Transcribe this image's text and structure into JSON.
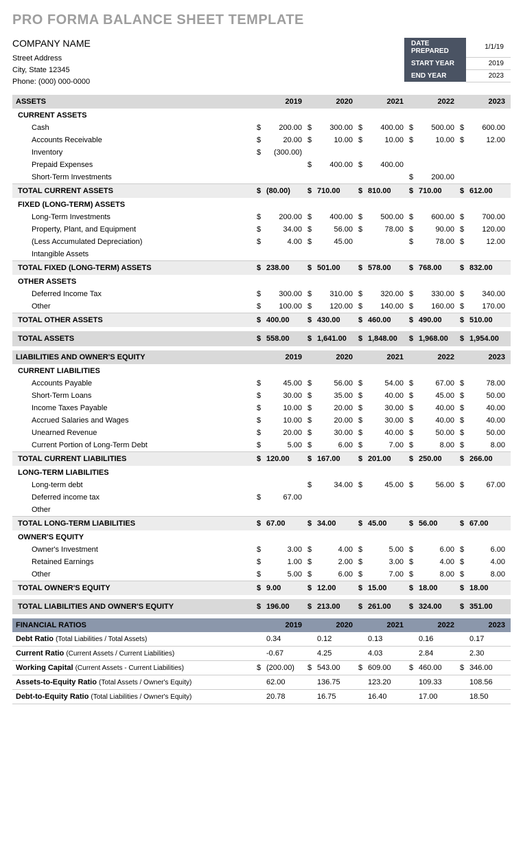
{
  "title": "PRO FORMA BALANCE SHEET TEMPLATE",
  "company": {
    "name": "COMPANY NAME",
    "street": "Street Address",
    "city": "City, State  12345",
    "phone": "Phone: (000) 000-0000"
  },
  "meta": {
    "date_prepared_label": "DATE PREPARED",
    "date_prepared": "1/1/19",
    "start_year_label": "START YEAR",
    "start_year": "2019",
    "end_year_label": "END YEAR",
    "end_year": "2023"
  },
  "years": [
    "2019",
    "2020",
    "2021",
    "2022",
    "2023"
  ],
  "assets_label": "ASSETS",
  "current_assets": {
    "label": "CURRENT ASSETS",
    "rows": [
      {
        "label": "Cash",
        "v": [
          "200.00",
          "300.00",
          "400.00",
          "500.00",
          "600.00"
        ]
      },
      {
        "label": "Accounts Receivable",
        "v": [
          "20.00",
          "10.00",
          "10.00",
          "10.00",
          "12.00"
        ]
      },
      {
        "label": "Inventory",
        "v": [
          "(300.00)",
          "",
          "",
          "",
          ""
        ]
      },
      {
        "label": "Prepaid Expenses",
        "v": [
          "",
          "400.00",
          "400.00",
          "",
          ""
        ]
      },
      {
        "label": "Short-Term Investments",
        "v": [
          "",
          "",
          "",
          "200.00",
          ""
        ]
      }
    ],
    "total_label": "TOTAL CURRENT ASSETS",
    "total": [
      "(80.00)",
      "710.00",
      "810.00",
      "710.00",
      "612.00"
    ]
  },
  "fixed_assets": {
    "label": "FIXED (LONG-TERM) ASSETS",
    "rows": [
      {
        "label": "Long-Term Investments",
        "v": [
          "200.00",
          "400.00",
          "500.00",
          "600.00",
          "700.00"
        ]
      },
      {
        "label": "Property, Plant, and Equipment",
        "v": [
          "34.00",
          "56.00",
          "78.00",
          "90.00",
          "120.00"
        ]
      },
      {
        "label": "(Less Accumulated Depreciation)",
        "v": [
          "4.00",
          "45.00",
          "",
          "78.00",
          "12.00"
        ]
      },
      {
        "label": "Intangible Assets",
        "v": [
          "",
          "",
          "",
          "",
          ""
        ]
      }
    ],
    "total_label": "TOTAL FIXED (LONG-TERM) ASSETS",
    "total": [
      "238.00",
      "501.00",
      "578.00",
      "768.00",
      "832.00"
    ]
  },
  "other_assets": {
    "label": "OTHER ASSETS",
    "rows": [
      {
        "label": "Deferred Income Tax",
        "v": [
          "300.00",
          "310.00",
          "320.00",
          "330.00",
          "340.00"
        ]
      },
      {
        "label": "Other",
        "v": [
          "100.00",
          "120.00",
          "140.00",
          "160.00",
          "170.00"
        ]
      }
    ],
    "total_label": "TOTAL OTHER ASSETS",
    "total": [
      "400.00",
      "430.00",
      "460.00",
      "490.00",
      "510.00"
    ]
  },
  "total_assets_label": "TOTAL ASSETS",
  "total_assets": [
    "558.00",
    "1,641.00",
    "1,848.00",
    "1,968.00",
    "1,954.00"
  ],
  "liab_label": "LIABILITIES AND OWNER'S EQUITY",
  "current_liab": {
    "label": "CURRENT LIABILITIES",
    "rows": [
      {
        "label": "Accounts Payable",
        "v": [
          "45.00",
          "56.00",
          "54.00",
          "67.00",
          "78.00"
        ]
      },
      {
        "label": "Short-Term Loans",
        "v": [
          "30.00",
          "35.00",
          "40.00",
          "45.00",
          "50.00"
        ]
      },
      {
        "label": "Income Taxes Payable",
        "v": [
          "10.00",
          "20.00",
          "30.00",
          "40.00",
          "40.00"
        ]
      },
      {
        "label": "Accrued Salaries and Wages",
        "v": [
          "10.00",
          "20.00",
          "30.00",
          "40.00",
          "40.00"
        ]
      },
      {
        "label": "Unearned Revenue",
        "v": [
          "20.00",
          "30.00",
          "40.00",
          "50.00",
          "50.00"
        ]
      },
      {
        "label": "Current Portion of Long-Term Debt",
        "v": [
          "5.00",
          "6.00",
          "7.00",
          "8.00",
          "8.00"
        ]
      }
    ],
    "total_label": "TOTAL CURRENT LIABILITIES",
    "total": [
      "120.00",
      "167.00",
      "201.00",
      "250.00",
      "266.00"
    ]
  },
  "lt_liab": {
    "label": "LONG-TERM LIABILITIES",
    "rows": [
      {
        "label": "Long-term debt",
        "v": [
          "",
          "34.00",
          "45.00",
          "56.00",
          "67.00"
        ]
      },
      {
        "label": "Deferred income tax",
        "v": [
          "67.00",
          "",
          "",
          "",
          ""
        ]
      },
      {
        "label": "Other",
        "v": [
          "",
          "",
          "",
          "",
          ""
        ]
      }
    ],
    "total_label": "TOTAL LONG-TERM LIABILITIES",
    "total": [
      "67.00",
      "34.00",
      "45.00",
      "56.00",
      "67.00"
    ]
  },
  "equity": {
    "label": "OWNER'S EQUITY",
    "rows": [
      {
        "label": "Owner's Investment",
        "v": [
          "3.00",
          "4.00",
          "5.00",
          "6.00",
          "6.00"
        ]
      },
      {
        "label": "Retained Earnings",
        "v": [
          "1.00",
          "2.00",
          "3.00",
          "4.00",
          "4.00"
        ]
      },
      {
        "label": "Other",
        "v": [
          "5.00",
          "6.00",
          "7.00",
          "8.00",
          "8.00"
        ]
      }
    ],
    "total_label": "TOTAL OWNER'S EQUITY",
    "total": [
      "9.00",
      "12.00",
      "15.00",
      "18.00",
      "18.00"
    ]
  },
  "total_liab_label": "TOTAL LIABILITIES AND OWNER'S EQUITY",
  "total_liab": [
    "196.00",
    "213.00",
    "261.00",
    "324.00",
    "351.00"
  ],
  "ratios_label": "FINANCIAL RATIOS",
  "ratios": [
    {
      "label": "Debt Ratio",
      "desc": "(Total Liabilities / Total Assets)",
      "sym": false,
      "v": [
        "0.34",
        "0.12",
        "0.13",
        "0.16",
        "0.17"
      ]
    },
    {
      "label": "Current Ratio",
      "desc": "(Current Assets / Current Liabilities)",
      "sym": false,
      "v": [
        "-0.67",
        "4.25",
        "4.03",
        "2.84",
        "2.30"
      ]
    },
    {
      "label": "Working Capital",
      "desc": "(Current Assets - Current Liabilities)",
      "sym": true,
      "v": [
        "(200.00)",
        "543.00",
        "609.00",
        "460.00",
        "346.00"
      ]
    },
    {
      "label": "Assets-to-Equity Ratio",
      "desc": "(Total Assets / Owner's Equity)",
      "sym": false,
      "v": [
        "62.00",
        "136.75",
        "123.20",
        "109.33",
        "108.56"
      ]
    },
    {
      "label": "Debt-to-Equity Ratio",
      "desc": "(Total Liabilities / Owner's Equity)",
      "sym": false,
      "v": [
        "20.78",
        "16.75",
        "16.40",
        "17.00",
        "18.50"
      ]
    }
  ]
}
